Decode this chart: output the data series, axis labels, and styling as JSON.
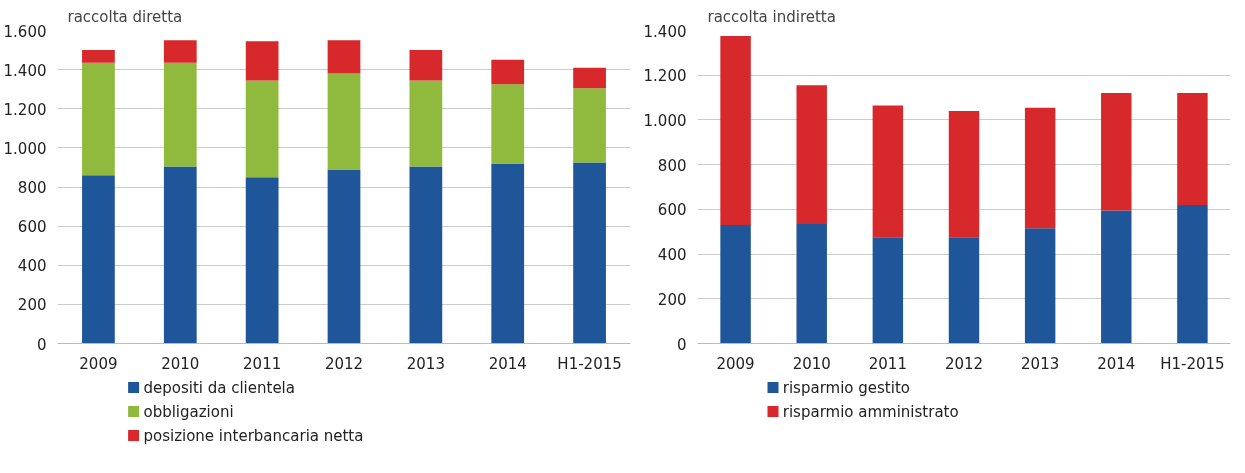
{
  "chart_data": [
    {
      "type": "bar",
      "title": "raccolta diretta",
      "stacked": true,
      "legend": "bottom",
      "grid": "y",
      "categories": [
        "2009",
        "2010",
        "2011",
        "2012",
        "2013",
        "2014",
        "H1-2015"
      ],
      "ylim": [
        0,
        1600
      ],
      "yticks": [
        0,
        200,
        400,
        600,
        800,
        {
          "value": 1000,
          "label": "1.000"
        },
        {
          "value": 1200,
          "label": "1.200"
        },
        {
          "value": 1400,
          "label": "1.400"
        },
        {
          "value": 1600,
          "label": "1.600"
        }
      ],
      "series": [
        {
          "name": "depositi da clientela",
          "color": "#1f5699",
          "values": [
            860,
            905,
            850,
            890,
            905,
            920,
            925
          ]
        },
        {
          "name": "obbligazioni",
          "color": "#8fba3d",
          "values": [
            575,
            530,
            495,
            490,
            440,
            405,
            380
          ]
        },
        {
          "name": "posizione interbancaria netta",
          "color": "#d7282b",
          "values": [
            65,
            115,
            200,
            170,
            155,
            125,
            105
          ]
        }
      ]
    },
    {
      "type": "bar",
      "title": "raccolta indiretta",
      "stacked": true,
      "legend": "bottom",
      "grid": "y",
      "categories": [
        "2009",
        "2010",
        "2011",
        "2012",
        "2013",
        "2014",
        "H1-2015"
      ],
      "ylim": [
        0,
        1400
      ],
      "yticks": [
        0,
        200,
        400,
        600,
        800,
        {
          "value": 1000,
          "label": "1.000"
        },
        {
          "value": 1200,
          "label": "1.200"
        },
        {
          "value": 1400,
          "label": "1.400"
        }
      ],
      "series": [
        {
          "name": "risparmio gestito",
          "color": "#1f5699",
          "values": [
            530,
            535,
            475,
            475,
            515,
            595,
            620
          ]
        },
        {
          "name": "risparmio amministrato",
          "color": "#d7282b",
          "values": [
            845,
            620,
            590,
            565,
            540,
            525,
            500
          ]
        }
      ]
    }
  ]
}
